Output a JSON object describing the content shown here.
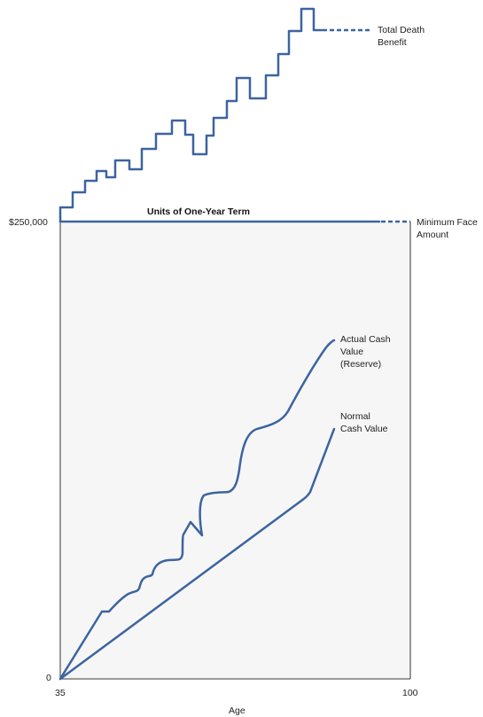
{
  "colors": {
    "line": "#3c64a0",
    "frame": "#333333",
    "panel": "#f6f6f6",
    "text": "#222222"
  },
  "labels": {
    "total_death_benefit": [
      "Total Death",
      "Benefit"
    ],
    "minimum_face_amount": [
      "Minimum Face",
      "Amount"
    ],
    "units_term": "Units of One-Year Term",
    "actual_cash_value": [
      "Actual Cash",
      "Value",
      "(Reserve)"
    ],
    "normal_cash_value": [
      "Normal",
      "Cash Value"
    ]
  },
  "axes": {
    "x_label": "Age",
    "x_ticks": [
      "35",
      "100"
    ],
    "y_ticks": [
      "0",
      "$250,000"
    ]
  }
}
